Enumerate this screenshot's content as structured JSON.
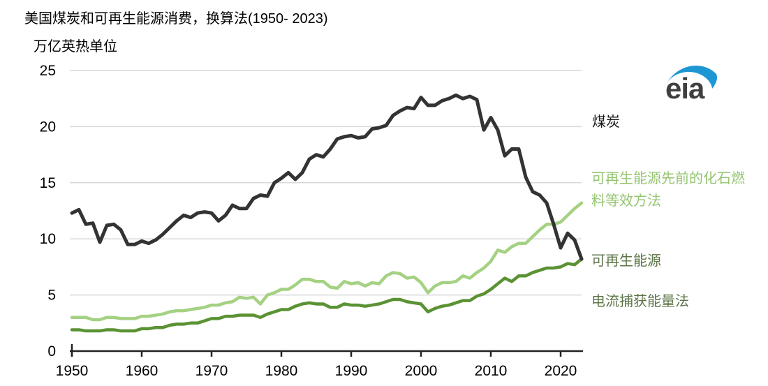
{
  "header": {
    "title": "美国煤炭和可再生能源消费，换算法(1950- 2023)",
    "unit_label": "万亿英热单位"
  },
  "logo": {
    "text": "eia",
    "swoosh_color": "#1e96d4",
    "text_color": "#404040"
  },
  "labels": {
    "coal": "煤炭",
    "fossil_equiv": "可再生能源先前的化石燃料等效方法",
    "renewables": "可再生能源",
    "captured": "电流捕获能量法"
  },
  "chart_data": {
    "type": "line",
    "title": "美国煤炭和可再生能源消费，换算法(1950- 2023)",
    "ylabel": "万亿英热单位",
    "xlim": [
      1950,
      2023
    ],
    "ylim": [
      0,
      25
    ],
    "x_step": 1,
    "xticks": [
      1950,
      1960,
      1970,
      1980,
      1990,
      2000,
      2010,
      2020
    ],
    "yticks": [
      0,
      5,
      10,
      15,
      20,
      25
    ],
    "grid": "horizontal",
    "legend_position": "right-margin-annotations",
    "colors": {
      "grid": "#d9d9d9",
      "axis": "#222222",
      "tick_text": "#000000"
    },
    "series": [
      {
        "name": "可再生能源（先前的化石燃料等效方法）",
        "color": "#a5d183",
        "width": 4.5,
        "values": [
          3.0,
          3.0,
          3.0,
          2.8,
          2.8,
          3.0,
          3.0,
          2.9,
          2.9,
          2.9,
          3.1,
          3.1,
          3.2,
          3.3,
          3.5,
          3.6,
          3.6,
          3.7,
          3.8,
          3.9,
          4.1,
          4.1,
          4.3,
          4.4,
          4.8,
          4.7,
          4.8,
          4.2,
          5.0,
          5.2,
          5.5,
          5.5,
          5.9,
          6.4,
          6.4,
          6.2,
          6.2,
          5.7,
          5.6,
          6.2,
          6.0,
          6.1,
          5.8,
          6.1,
          6.0,
          6.7,
          7.0,
          6.9,
          6.5,
          6.6,
          6.1,
          5.2,
          5.8,
          6.1,
          6.1,
          6.2,
          6.7,
          6.5,
          7.0,
          7.4,
          8.0,
          9.0,
          8.8,
          9.3,
          9.6,
          9.6,
          10.2,
          10.8,
          11.3,
          11.3,
          11.5,
          12.1,
          12.7,
          13.2
        ]
      },
      {
        "name": "可再生能源（电流捕获能量法）",
        "color": "#5b9234",
        "width": 4.5,
        "values": [
          1.9,
          1.9,
          1.8,
          1.8,
          1.8,
          1.9,
          1.9,
          1.8,
          1.8,
          1.8,
          2.0,
          2.0,
          2.1,
          2.1,
          2.3,
          2.4,
          2.4,
          2.5,
          2.5,
          2.7,
          2.9,
          2.9,
          3.1,
          3.1,
          3.2,
          3.2,
          3.2,
          3.0,
          3.3,
          3.5,
          3.7,
          3.7,
          4.0,
          4.2,
          4.3,
          4.2,
          4.2,
          3.9,
          3.9,
          4.2,
          4.1,
          4.1,
          4.0,
          4.1,
          4.2,
          4.4,
          4.6,
          4.6,
          4.4,
          4.3,
          4.2,
          3.5,
          3.8,
          4.0,
          4.1,
          4.3,
          4.5,
          4.5,
          4.9,
          5.1,
          5.5,
          6.0,
          6.5,
          6.2,
          6.7,
          6.7,
          7.0,
          7.2,
          7.4,
          7.4,
          7.5,
          7.8,
          7.7,
          8.2
        ]
      },
      {
        "name": "煤炭",
        "color": "#333333",
        "width": 5,
        "values": [
          12.3,
          12.6,
          11.3,
          11.4,
          9.7,
          11.2,
          11.3,
          10.8,
          9.5,
          9.5,
          9.8,
          9.6,
          9.9,
          10.4,
          11.0,
          11.6,
          12.1,
          11.9,
          12.3,
          12.4,
          12.3,
          11.6,
          12.1,
          13.0,
          12.7,
          12.7,
          13.6,
          13.9,
          13.8,
          15.0,
          15.4,
          15.9,
          15.3,
          15.9,
          17.1,
          17.5,
          17.3,
          18.0,
          18.9,
          19.1,
          19.2,
          19.0,
          19.1,
          19.8,
          19.9,
          20.1,
          21.0,
          21.4,
          21.7,
          21.6,
          22.6,
          21.9,
          21.9,
          22.3,
          22.5,
          22.8,
          22.5,
          22.7,
          22.4,
          19.7,
          20.8,
          19.7,
          17.4,
          18.0,
          18.0,
          15.5,
          14.2,
          13.9,
          13.2,
          11.3,
          9.2,
          10.5,
          9.9,
          8.2
        ]
      }
    ]
  }
}
